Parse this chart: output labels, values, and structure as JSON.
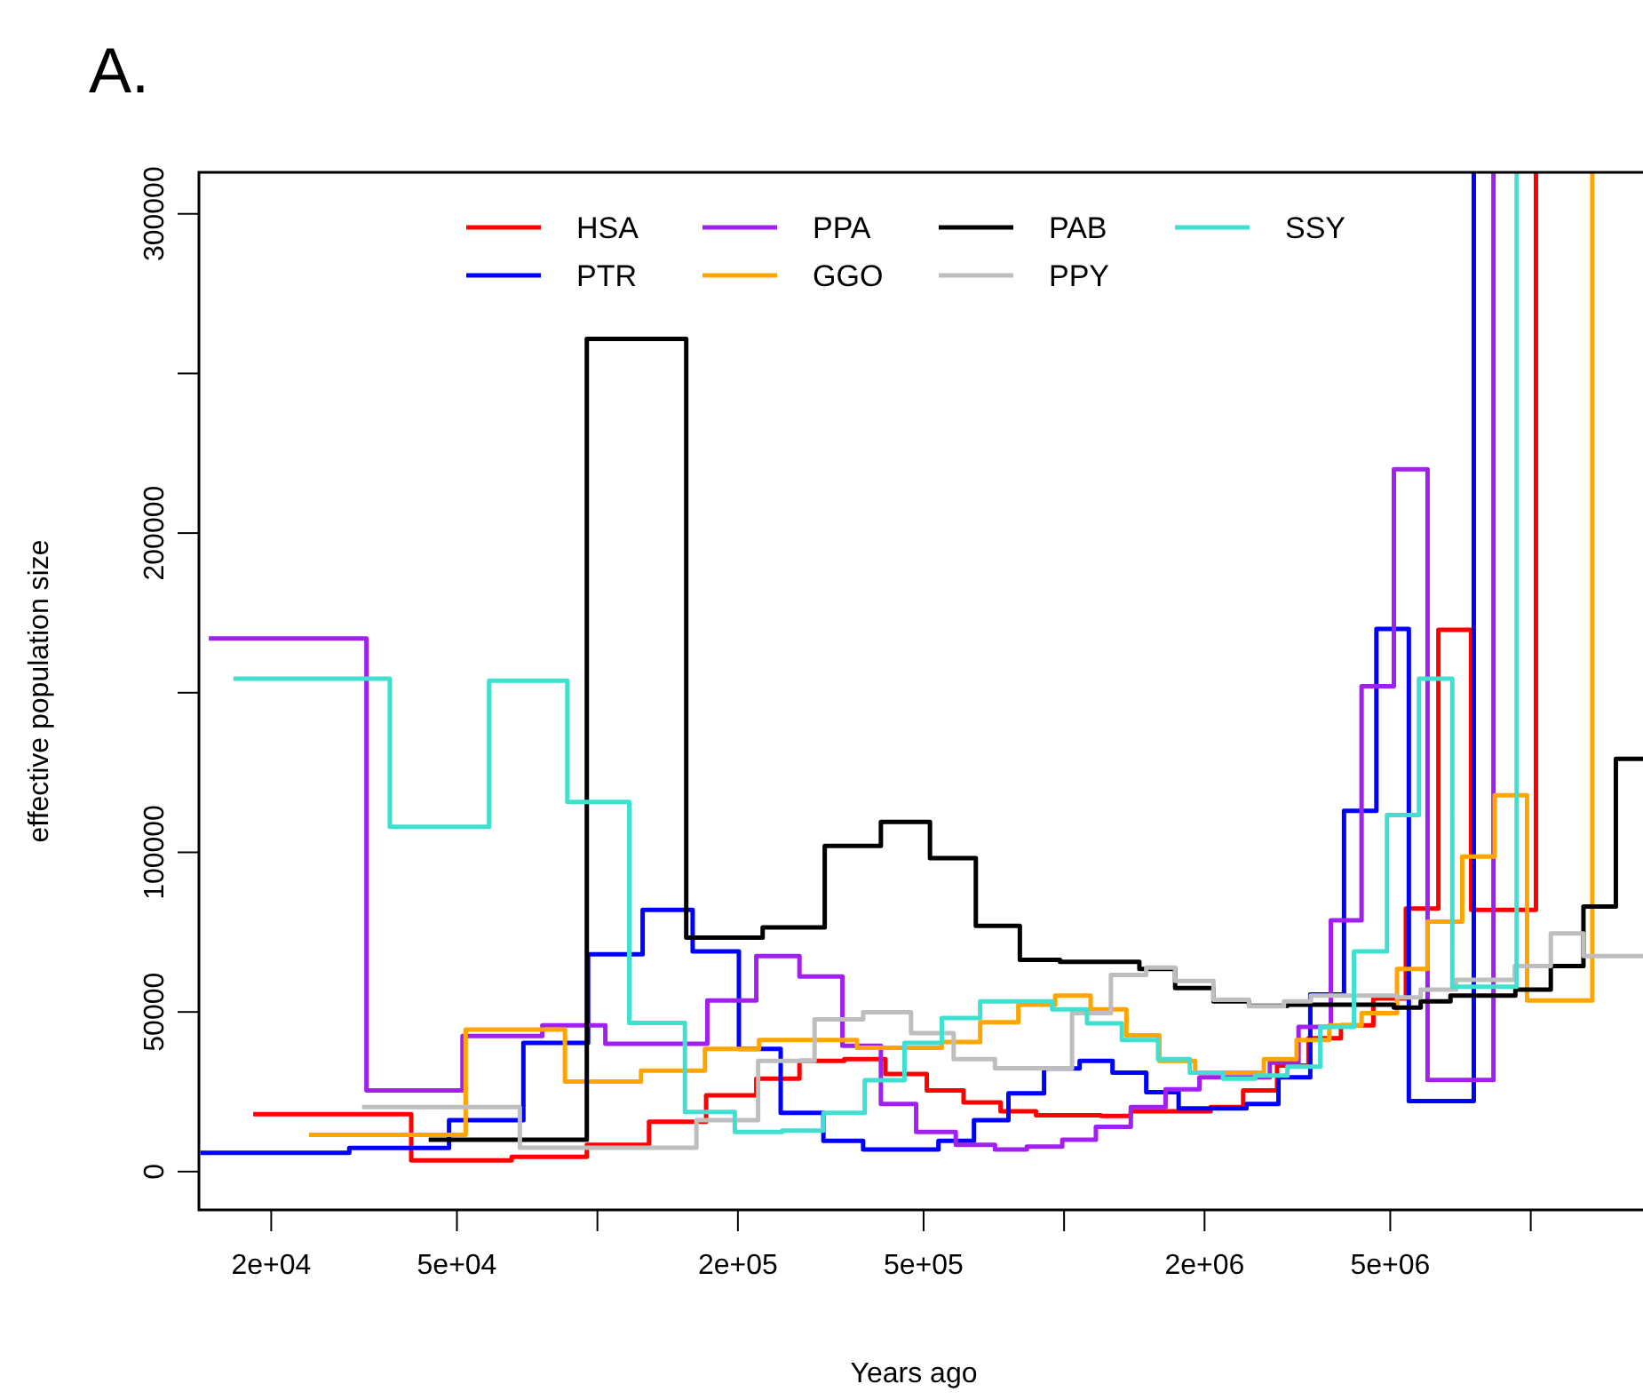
{
  "chart_data": {
    "type": "step",
    "title": "A.",
    "xlabel": "Years ago",
    "ylabel": "effective population size",
    "log": "x",
    "legend": "top",
    "xlim": [
      14000,
      17400000
    ],
    "ylim": [
      -12000,
      313000
    ],
    "xticks": [
      {
        "value": 20000,
        "label": "2e+04"
      },
      {
        "value": 50000,
        "label": "5e+04"
      },
      {
        "value": 100000,
        "label": null
      },
      {
        "value": 200000,
        "label": "2e+05"
      },
      {
        "value": 500000,
        "label": "5e+05"
      },
      {
        "value": 1000000,
        "label": null
      },
      {
        "value": 2000000,
        "label": "2e+06"
      },
      {
        "value": 5000000,
        "label": "5e+06"
      },
      {
        "value": 10000000,
        "label": null
      }
    ],
    "yticks": [
      0,
      50000,
      100000,
      {
        "value": 150000,
        "label": null
      },
      200000,
      {
        "value": 250000,
        "label": null
      },
      300000
    ],
    "series": [
      {
        "name": "HSA",
        "color": "#ff0000",
        "x": [
          18300,
          39900,
          65500,
          94900,
          129000,
          171000,
          219000,
          271000,
          338000,
          414000,
          508000,
          609000,
          731000,
          871000,
          1200000,
          1390000,
          2060000,
          2420000,
          2860000,
          3340000,
          3920000,
          4600000,
          5400000,
          6340000,
          7450000,
          10260000
        ],
        "values": [
          18000,
          3500,
          4600,
          8400,
          15600,
          23900,
          29100,
          34700,
          35200,
          30600,
          25400,
          21700,
          18900,
          17600,
          17400,
          18900,
          20200,
          25400,
          33200,
          41800,
          45800,
          54200,
          82400,
          169700,
          82000,
          313000
        ]
      },
      {
        "name": "PTR",
        "color": "#0000ff",
        "x": [
          14100,
          29400,
          48100,
          69400,
          95500,
          125000,
          160000,
          201000,
          247000,
          305000,
          371000,
          538000,
          641000,
          760000,
          906000,
          1080000,
          1270000,
          1500000,
          1760000,
          2460000,
          2880000,
          3370000,
          3980000,
          4670000,
          5480000,
          7550000
        ],
        "values": [
          5900,
          7400,
          16100,
          40300,
          68100,
          82000,
          69000,
          38400,
          18400,
          9600,
          6900,
          9600,
          16100,
          24500,
          32300,
          34700,
          31000,
          24900,
          19800,
          21200,
          29500,
          55500,
          113000,
          170000,
          22100,
          313000
        ]
      },
      {
        "name": "PPA",
        "color": "#a020f0",
        "x": [
          14700,
          32000,
          51400,
          76200,
          104000,
          172000,
          219000,
          271000,
          335000,
          405000,
          482000,
          586000,
          711000,
          832000,
          991000,
          1170000,
          1390000,
          1650000,
          1950000,
          2760000,
          3180000,
          3730000,
          4340000,
          5090000,
          6010000,
          8320000
        ],
        "values": [
          167000,
          25400,
          42500,
          45800,
          40000,
          53600,
          67500,
          61100,
          39400,
          21200,
          12400,
          8400,
          6900,
          7800,
          10000,
          14000,
          20200,
          25800,
          29500,
          34100,
          45300,
          78700,
          152000,
          220000,
          28700,
          313000
        ]
      },
      {
        "name": "GGO",
        "color": "#ffa500",
        "x": [
          24100,
          52200,
          85200,
          124000,
          170000,
          222000,
          360000,
          547000,
          661000,
          798000,
          957000,
          1140000,
          1360000,
          1600000,
          1910000,
          2680000,
          3150000,
          3700000,
          4340000,
          5170000,
          6010000,
          7130000,
          8370000,
          9820000,
          13550000
        ],
        "values": [
          11500,
          44500,
          28200,
          31600,
          38400,
          41200,
          38800,
          40600,
          46800,
          52300,
          55100,
          50800,
          42700,
          34700,
          31000,
          35200,
          41200,
          45800,
          49600,
          63500,
          78300,
          98700,
          117900,
          53600,
          313000
        ]
      },
      {
        "name": "PAB",
        "color": "#000000",
        "x": [
          43500,
          94900,
          155000,
          226000,
          307000,
          405000,
          516000,
          647000,
          804000,
          980000,
          1450000,
          1730000,
          2090000,
          2490000,
          3010000,
          5090000,
          5810000,
          6730000,
          9270000,
          11040000,
          12970000,
          15220000,
          17400000
        ],
        "values": [
          10000,
          260800,
          73300,
          76500,
          102000,
          109500,
          98200,
          77000,
          66300,
          65700,
          63500,
          57500,
          53300,
          51900,
          52300,
          51400,
          53300,
          55100,
          57000,
          64400,
          83000,
          129300,
          129300
        ]
      },
      {
        "name": "PPY",
        "color": "#bebebe",
        "x": [
          31300,
          68200,
          163000,
          221000,
          292000,
          371000,
          470000,
          580000,
          711000,
          1040000,
          1260000,
          1500000,
          1730000,
          2090000,
          2490000,
          2960000,
          3380000,
          5170000,
          5810000,
          6920000,
          9240000,
          11040000,
          12970000,
          17400000
        ],
        "values": [
          20200,
          7500,
          16100,
          34700,
          47700,
          49900,
          43400,
          35200,
          32400,
          49600,
          61600,
          63900,
          59700,
          53800,
          51800,
          53300,
          55100,
          54600,
          57000,
          60100,
          64400,
          74600,
          67500,
          67500
        ]
      },
      {
        "name": "SSY",
        "color": "#40e0d0",
        "x": [
          16600,
          35900,
          58600,
          86200,
          117000,
          154000,
          197000,
          249000,
          305000,
          374000,
          455000,
          547000,
          661000,
          943000,
          1120000,
          1330000,
          1590000,
          1860000,
          2190000,
          2570000,
          3010000,
          3540000,
          4180000,
          4920000,
          5760000,
          6790000,
          9330000
        ],
        "values": [
          154400,
          108000,
          153800,
          115800,
          46600,
          18700,
          12400,
          12800,
          18400,
          28600,
          40300,
          48100,
          53300,
          50800,
          46400,
          41200,
          35200,
          31000,
          29100,
          30100,
          32900,
          45300,
          69000,
          111700,
          154400,
          57900,
          313000
        ]
      }
    ]
  }
}
